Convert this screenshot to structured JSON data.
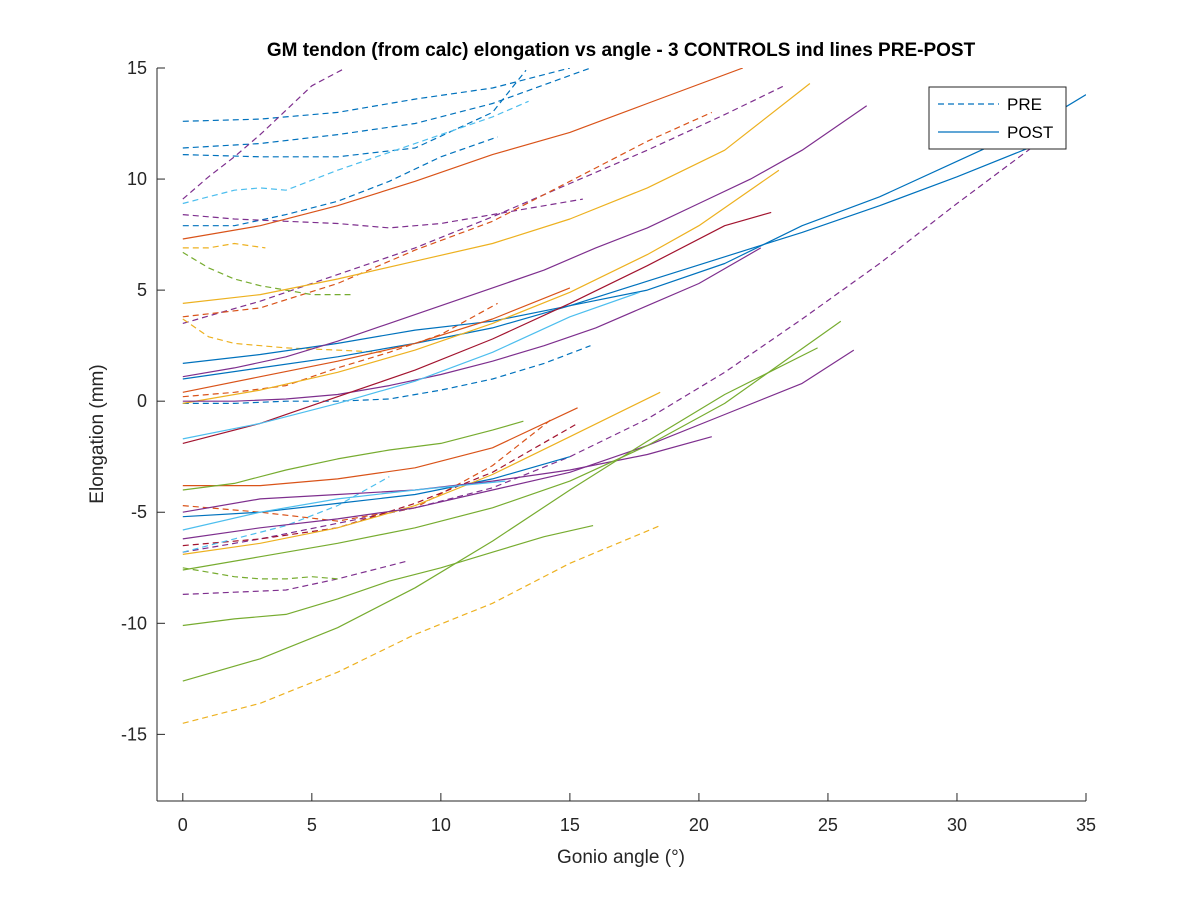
{
  "chart_data": {
    "type": "line",
    "title": "GM tendon (from calc) elongation vs angle - 3 CONTROLS ind lines PRE-POST",
    "xlabel": "Gonio angle (°)",
    "ylabel": "Elongation (mm)",
    "xlim": [
      -1,
      35
    ],
    "ylim": [
      -18,
      15
    ],
    "xticks": [
      0,
      5,
      10,
      15,
      20,
      25,
      30,
      35
    ],
    "yticks": [
      -15,
      -10,
      -5,
      0,
      5,
      10,
      15
    ],
    "xtick_labels": [
      "0",
      "5",
      "10",
      "15",
      "20",
      "25",
      "30",
      "35"
    ],
    "ytick_labels": [
      "-15",
      "-10",
      "-5",
      "0",
      "5",
      "10",
      "15"
    ],
    "grid": false,
    "legend": {
      "position": "top-right",
      "entries": [
        {
          "label": "PRE",
          "style": "dashed",
          "color": "#0072BD"
        },
        {
          "label": "POST",
          "style": "solid",
          "color": "#0072BD"
        }
      ]
    },
    "colors": {
      "blue": "#0072BD",
      "orange": "#D95319",
      "yellow": "#EDB120",
      "purple": "#7E2F8E",
      "green": "#77AC30",
      "cyan": "#4DBEEE",
      "darkred": "#A2142F"
    },
    "series": [
      {
        "group": "PRE",
        "color": "#0072BD",
        "x": [
          0,
          3,
          6,
          9,
          12,
          15
        ],
        "y": [
          12.6,
          12.7,
          13.0,
          13.6,
          14.1,
          15.0
        ]
      },
      {
        "group": "PRE",
        "color": "#0072BD",
        "x": [
          0,
          3,
          6,
          9,
          12,
          15.8
        ],
        "y": [
          11.4,
          11.6,
          12.0,
          12.5,
          13.4,
          15.0
        ]
      },
      {
        "group": "PRE",
        "color": "#0072BD",
        "x": [
          0,
          3,
          6,
          9,
          12,
          13.3
        ],
        "y": [
          11.1,
          11.0,
          11.0,
          11.4,
          13.0,
          14.9
        ]
      },
      {
        "group": "PRE",
        "color": "#0072BD",
        "x": [
          0,
          2,
          4,
          6,
          8,
          10,
          12.2
        ],
        "y": [
          7.9,
          7.9,
          8.4,
          9.0,
          9.9,
          11.0,
          11.9
        ]
      },
      {
        "group": "PRE",
        "color": "#0072BD",
        "x": [
          0,
          2,
          4,
          6,
          8,
          10,
          12,
          14,
          15.8
        ],
        "y": [
          -0.1,
          -0.1,
          0.0,
          0.0,
          0.1,
          0.5,
          1.0,
          1.7,
          2.5
        ]
      },
      {
        "group": "PRE",
        "color": "#7E2F8E",
        "x": [
          0,
          1,
          2,
          3,
          4,
          5,
          6.3
        ],
        "y": [
          9.1,
          10.1,
          11.0,
          12.0,
          13.1,
          14.2,
          15.0
        ]
      },
      {
        "group": "PRE",
        "color": "#7E2F8E",
        "x": [
          0,
          3,
          6,
          9,
          12,
          15,
          18,
          21,
          23.3
        ],
        "y": [
          3.5,
          4.5,
          5.7,
          6.9,
          8.3,
          9.8,
          11.3,
          12.9,
          14.2
        ]
      },
      {
        "group": "PRE",
        "color": "#7E2F8E",
        "x": [
          0,
          2,
          4,
          6,
          8,
          10,
          12,
          15.5
        ],
        "y": [
          8.4,
          8.2,
          8.1,
          8.0,
          7.8,
          8.0,
          8.4,
          9.1
        ]
      },
      {
        "group": "PRE",
        "color": "#7E2F8E",
        "x": [
          0,
          3,
          6,
          9,
          12,
          15,
          18,
          21,
          24,
          27,
          30,
          33
        ],
        "y": [
          -6.8,
          -6.2,
          -5.5,
          -4.8,
          -3.9,
          -2.5,
          -0.8,
          1.3,
          3.7,
          6.2,
          8.9,
          11.5
        ]
      },
      {
        "group": "PRE",
        "color": "#7E2F8E",
        "x": [
          0,
          2,
          4,
          6,
          8.7
        ],
        "y": [
          -8.7,
          -8.6,
          -8.5,
          -8.0,
          -7.2
        ]
      },
      {
        "group": "PRE",
        "color": "#D95319",
        "x": [
          0,
          3,
          6,
          9,
          12,
          15,
          18,
          20.5
        ],
        "y": [
          3.8,
          4.2,
          5.3,
          6.8,
          8.1,
          9.9,
          11.7,
          13.0
        ]
      },
      {
        "group": "PRE",
        "color": "#D95319",
        "x": [
          0,
          2,
          4,
          6,
          8,
          10,
          12.2
        ],
        "y": [
          0.2,
          0.4,
          0.7,
          1.5,
          2.2,
          3.0,
          4.4
        ]
      },
      {
        "group": "PRE",
        "color": "#D95319",
        "x": [
          0,
          3,
          6,
          9,
          12,
          14.3
        ],
        "y": [
          -4.7,
          -5.0,
          -5.4,
          -4.8,
          -2.9,
          -0.8
        ]
      },
      {
        "group": "PRE",
        "color": "#A2142F",
        "x": [
          0,
          3,
          6,
          9,
          12,
          15.3
        ],
        "y": [
          -6.5,
          -6.2,
          -5.7,
          -4.6,
          -3.2,
          -1.0
        ]
      },
      {
        "group": "PRE",
        "color": "#EDB120",
        "x": [
          0,
          1,
          2,
          3.2
        ],
        "y": [
          6.9,
          6.9,
          7.1,
          6.9
        ]
      },
      {
        "group": "PRE",
        "color": "#EDB120",
        "x": [
          0,
          1,
          2,
          4,
          6,
          7.7
        ],
        "y": [
          3.7,
          2.9,
          2.6,
          2.4,
          2.3,
          2.2
        ]
      },
      {
        "group": "PRE",
        "color": "#EDB120",
        "x": [
          0,
          3,
          6,
          9,
          12,
          15,
          18.5
        ],
        "y": [
          -14.5,
          -13.6,
          -12.2,
          -10.5,
          -9.1,
          -7.3,
          -5.6
        ]
      },
      {
        "group": "PRE",
        "color": "#77AC30",
        "x": [
          0,
          1,
          2,
          3,
          4,
          5,
          6.5
        ],
        "y": [
          6.7,
          6.0,
          5.5,
          5.2,
          5.0,
          4.8,
          4.8
        ]
      },
      {
        "group": "PRE",
        "color": "#77AC30",
        "x": [
          0,
          1,
          2,
          3,
          4,
          5,
          6
        ],
        "y": [
          -7.5,
          -7.7,
          -7.9,
          -8.0,
          -8.0,
          -7.9,
          -8.0
        ]
      },
      {
        "group": "PRE",
        "color": "#4DBEEE",
        "x": [
          0,
          1,
          2,
          3,
          4,
          6,
          8,
          10,
          12,
          13.4
        ],
        "y": [
          8.9,
          9.2,
          9.5,
          9.6,
          9.5,
          10.4,
          11.2,
          12.0,
          12.8,
          13.5
        ]
      },
      {
        "group": "PRE",
        "color": "#4DBEEE",
        "x": [
          0,
          2,
          4,
          6,
          8
        ],
        "y": [
          -6.8,
          -6.2,
          -5.6,
          -4.7,
          -3.4
        ]
      },
      {
        "group": "POST",
        "color": "#0072BD",
        "x": [
          0,
          3,
          6,
          9,
          12,
          15,
          18,
          21,
          24,
          27,
          30,
          33,
          35
        ],
        "y": [
          1.7,
          2.1,
          2.6,
          3.2,
          3.6,
          4.3,
          5.0,
          6.2,
          7.9,
          9.2,
          10.8,
          12.4,
          13.8
        ]
      },
      {
        "group": "POST",
        "color": "#0072BD",
        "x": [
          0,
          3,
          6,
          9,
          12,
          15,
          18,
          21,
          24,
          27,
          30,
          33
        ],
        "y": [
          1.0,
          1.5,
          2.0,
          2.6,
          3.3,
          4.3,
          5.4,
          6.5,
          7.6,
          8.8,
          10.1,
          11.5
        ]
      },
      {
        "group": "POST",
        "color": "#0072BD",
        "x": [
          0,
          3,
          6,
          9,
          12,
          15
        ],
        "y": [
          -5.2,
          -5.0,
          -4.6,
          -4.2,
          -3.5,
          -2.5
        ]
      },
      {
        "group": "POST",
        "color": "#D95319",
        "x": [
          0,
          3,
          6,
          9,
          12,
          15,
          18,
          21.7
        ],
        "y": [
          7.3,
          7.9,
          8.8,
          9.9,
          11.1,
          12.1,
          13.4,
          15.0
        ]
      },
      {
        "group": "POST",
        "color": "#D95319",
        "x": [
          0,
          3,
          6,
          9,
          12,
          15
        ],
        "y": [
          0.4,
          1.1,
          1.8,
          2.6,
          3.7,
          5.1
        ]
      },
      {
        "group": "POST",
        "color": "#D95319",
        "x": [
          0,
          3,
          6,
          9,
          12,
          15.3
        ],
        "y": [
          -3.8,
          -3.8,
          -3.5,
          -3.0,
          -2.1,
          -0.3
        ]
      },
      {
        "group": "POST",
        "color": "#EDB120",
        "x": [
          0,
          3,
          6,
          9,
          12,
          15,
          18,
          21,
          24.3
        ],
        "y": [
          4.4,
          4.8,
          5.5,
          6.3,
          7.1,
          8.2,
          9.6,
          11.3,
          14.3
        ]
      },
      {
        "group": "POST",
        "color": "#EDB120",
        "x": [
          0,
          3,
          6,
          9,
          12,
          15,
          18,
          20,
          23.1
        ],
        "y": [
          -0.1,
          0.5,
          1.3,
          2.3,
          3.5,
          4.9,
          6.6,
          7.9,
          10.4
        ]
      },
      {
        "group": "POST",
        "color": "#EDB120",
        "x": [
          0,
          3,
          6,
          9,
          12,
          15,
          18.5
        ],
        "y": [
          -6.9,
          -6.4,
          -5.7,
          -4.7,
          -3.3,
          -1.6,
          0.4
        ]
      },
      {
        "group": "POST",
        "color": "#7E2F8E",
        "x": [
          0,
          2,
          4,
          6,
          8,
          10,
          12,
          14,
          16,
          18,
          20,
          22,
          24,
          26.5
        ],
        "y": [
          1.1,
          1.5,
          2.0,
          2.7,
          3.5,
          4.3,
          5.1,
          5.9,
          6.9,
          7.8,
          8.9,
          10.0,
          11.3,
          13.3
        ]
      },
      {
        "group": "POST",
        "color": "#7E2F8E",
        "x": [
          0,
          3,
          6,
          9,
          12,
          15,
          18,
          21,
          24,
          26
        ],
        "y": [
          -6.2,
          -5.7,
          -5.3,
          -4.8,
          -4.0,
          -3.2,
          -2.0,
          -0.6,
          0.8,
          2.3
        ]
      },
      {
        "group": "POST",
        "color": "#7E2F8E",
        "x": [
          0,
          3,
          6,
          9,
          12,
          15,
          18,
          20.5
        ],
        "y": [
          -5.0,
          -4.4,
          -4.2,
          -4.0,
          -3.6,
          -3.1,
          -2.4,
          -1.6
        ]
      },
      {
        "group": "POST",
        "color": "#7E2F8E",
        "x": [
          0,
          2,
          4,
          6,
          8,
          10,
          12,
          14,
          16,
          18,
          20,
          22.4
        ],
        "y": [
          0.0,
          0.0,
          0.1,
          0.3,
          0.7,
          1.2,
          1.8,
          2.5,
          3.3,
          4.3,
          5.3,
          6.9
        ]
      },
      {
        "group": "POST",
        "color": "#A2142F",
        "x": [
          0,
          3,
          6,
          9,
          12,
          15,
          18,
          21,
          22.8
        ],
        "y": [
          -1.9,
          -1.0,
          0.2,
          1.4,
          2.8,
          4.4,
          6.1,
          7.9,
          8.5
        ]
      },
      {
        "group": "POST",
        "color": "#77AC30",
        "x": [
          0,
          2,
          4,
          6,
          8,
          10,
          12,
          13.2
        ],
        "y": [
          -4.0,
          -3.7,
          -3.1,
          -2.6,
          -2.2,
          -1.9,
          -1.3,
          -0.9
        ]
      },
      {
        "group": "POST",
        "color": "#77AC30",
        "x": [
          0,
          2,
          4,
          6,
          8,
          10,
          12,
          14,
          15.9
        ],
        "y": [
          -10.1,
          -9.8,
          -9.6,
          -8.9,
          -8.1,
          -7.5,
          -6.8,
          -6.1,
          -5.6
        ]
      },
      {
        "group": "POST",
        "color": "#77AC30",
        "x": [
          0,
          3,
          6,
          9,
          12,
          15,
          18,
          21,
          24.6
        ],
        "y": [
          -12.6,
          -11.6,
          -10.2,
          -8.4,
          -6.3,
          -4.0,
          -1.8,
          0.3,
          2.4
        ]
      },
      {
        "group": "POST",
        "color": "#77AC30",
        "x": [
          0,
          3,
          6,
          9,
          12,
          15,
          18,
          21,
          25.5
        ],
        "y": [
          -7.6,
          -7.0,
          -6.4,
          -5.7,
          -4.8,
          -3.6,
          -2.0,
          -0.1,
          3.6
        ]
      },
      {
        "group": "POST",
        "color": "#4DBEEE",
        "x": [
          0,
          3,
          6,
          9,
          12,
          15,
          17.7
        ],
        "y": [
          -1.7,
          -1.0,
          -0.1,
          0.9,
          2.2,
          3.8,
          4.9
        ]
      },
      {
        "group": "POST",
        "color": "#4DBEEE",
        "x": [
          0,
          3,
          6,
          9,
          12.5
        ],
        "y": [
          -5.8,
          -5.0,
          -4.4,
          -4.0,
          -3.6
        ]
      }
    ]
  }
}
